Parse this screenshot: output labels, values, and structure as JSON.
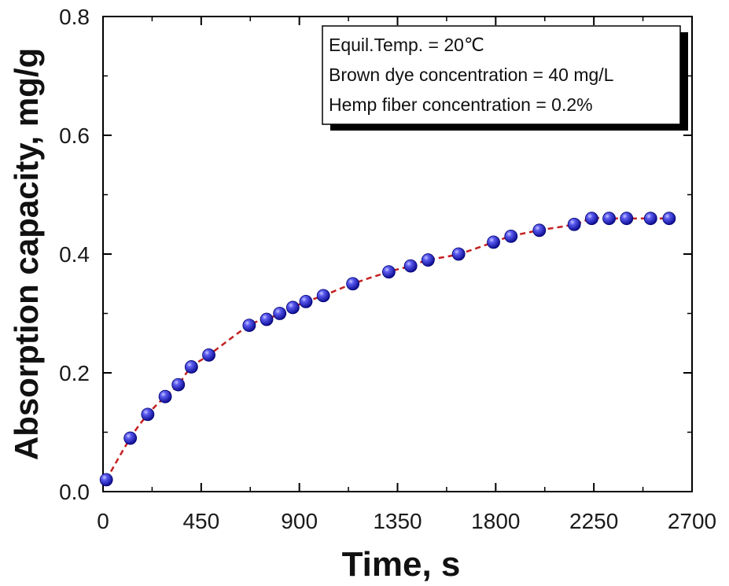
{
  "chart_data": {
    "type": "scatter",
    "xlabel": "Time, s",
    "ylabel": "Absorption capacity, mg/g",
    "xlim": [
      0,
      2700
    ],
    "ylim": [
      0,
      0.8
    ],
    "x_ticks": [
      0,
      450,
      900,
      1350,
      1800,
      2250,
      2700
    ],
    "x_tick_labels": [
      "0",
      "450",
      "900",
      "1350",
      "1800",
      "2250",
      "2700"
    ],
    "y_ticks": [
      0,
      0.2,
      0.4,
      0.6,
      0.8
    ],
    "y_tick_labels": [
      "0.0",
      "0.2",
      "0.4",
      "0.6",
      "0.8"
    ],
    "grid": false,
    "legend_position": "top-right",
    "annotations": [
      "Equil.Temp. = 20℃",
      "Brown dye concentration = 40 mg/L",
      "Hemp fiber concentration = 0.2%"
    ],
    "colors": {
      "marker": "#2a2ad8",
      "fit_line": "#c42020"
    },
    "series": [
      {
        "x": [
          15,
          125,
          205,
          285,
          345,
          405,
          485,
          670,
          750,
          810,
          870,
          930,
          1010,
          1145,
          1310,
          1410,
          1490,
          1630,
          1790,
          1870,
          2000,
          2160,
          2240,
          2320,
          2400,
          2510,
          2595
        ],
        "y": [
          0.02,
          0.09,
          0.13,
          0.16,
          0.18,
          0.21,
          0.23,
          0.28,
          0.29,
          0.3,
          0.31,
          0.32,
          0.33,
          0.35,
          0.37,
          0.38,
          0.39,
          0.4,
          0.42,
          0.43,
          0.44,
          0.45,
          0.46,
          0.46,
          0.46,
          0.46,
          0.46
        ]
      }
    ]
  }
}
